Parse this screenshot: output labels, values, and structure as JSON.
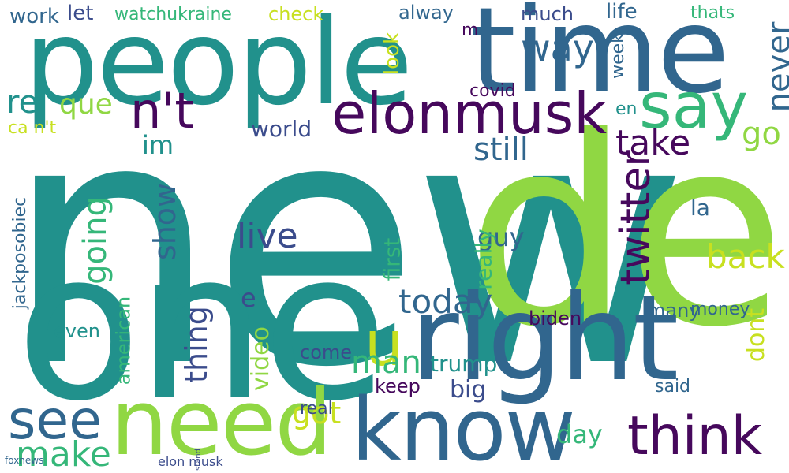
{
  "palette": {
    "dark_purple": "#46085c",
    "indigo": "#3b4c8c",
    "blue": "#31668e",
    "teal": "#21918c",
    "green": "#35b779",
    "lime": "#90d743",
    "yellow": "#c8e020"
  },
  "words": [
    {
      "t": "new",
      "c": "teal"
    },
    {
      "t": "de",
      "c": "lime"
    },
    {
      "t": "one",
      "c": "teal"
    },
    {
      "t": "people",
      "c": "teal"
    },
    {
      "t": "time",
      "c": "blue"
    },
    {
      "t": "right",
      "c": "blue"
    },
    {
      "t": "know",
      "c": "blue"
    },
    {
      "t": "need",
      "c": "lime"
    },
    {
      "t": "elonmusk",
      "c": "dark_purple"
    },
    {
      "t": "say",
      "c": "green"
    },
    {
      "t": "think",
      "c": "dark_purple"
    },
    {
      "t": "see",
      "c": "blue"
    },
    {
      "t": "n't",
      "c": "dark_purple"
    },
    {
      "t": "u",
      "c": "yellow"
    },
    {
      "t": "twitter",
      "c": "dark_purple"
    },
    {
      "t": "make",
      "c": "green"
    },
    {
      "t": "take",
      "c": "dark_purple"
    },
    {
      "t": "way",
      "c": "blue"
    },
    {
      "t": "back",
      "c": "yellow"
    },
    {
      "t": "go",
      "c": "lime"
    },
    {
      "t": "live",
      "c": "indigo"
    },
    {
      "t": "today",
      "c": "blue"
    },
    {
      "t": "still",
      "c": "blue"
    },
    {
      "t": "never",
      "c": "blue"
    },
    {
      "t": "re",
      "c": "teal"
    },
    {
      "t": "que",
      "c": "lime"
    },
    {
      "t": "going",
      "c": "green"
    },
    {
      "t": "show",
      "c": "blue"
    },
    {
      "t": "thing",
      "c": "indigo"
    },
    {
      "t": "got",
      "c": "yellow"
    },
    {
      "t": "man",
      "c": "green"
    },
    {
      "t": "dont",
      "c": "yellow"
    },
    {
      "t": "day",
      "c": "green"
    },
    {
      "t": "guy",
      "c": "blue"
    },
    {
      "t": "im",
      "c": "teal"
    },
    {
      "t": "world",
      "c": "indigo"
    },
    {
      "t": "trump",
      "c": "teal"
    },
    {
      "t": "video",
      "c": "lime"
    },
    {
      "t": "big",
      "c": "indigo"
    },
    {
      "t": "la",
      "c": "blue"
    },
    {
      "t": "e",
      "c": "indigo"
    },
    {
      "t": "first",
      "c": "green"
    },
    {
      "t": "really",
      "c": "green"
    },
    {
      "t": "work",
      "c": "blue"
    },
    {
      "t": "let",
      "c": "indigo"
    },
    {
      "t": "watchukraine",
      "c": "green"
    },
    {
      "t": "check",
      "c": "yellow"
    },
    {
      "t": "alway",
      "c": "blue"
    },
    {
      "t": "life",
      "c": "blue"
    },
    {
      "t": "thats",
      "c": "green"
    },
    {
      "t": "much",
      "c": "indigo"
    },
    {
      "t": "look",
      "c": "yellow"
    },
    {
      "t": "week",
      "c": "blue"
    },
    {
      "t": "m",
      "c": "dark_purple"
    },
    {
      "t": "jackposobiec",
      "c": "blue"
    },
    {
      "t": "american",
      "c": "green"
    },
    {
      "t": "even",
      "c": "teal"
    },
    {
      "t": "come",
      "c": "indigo"
    },
    {
      "t": "keep",
      "c": "dark_purple"
    },
    {
      "t": "biden",
      "c": "dark_purple"
    },
    {
      "t": "many",
      "c": "blue"
    },
    {
      "t": "money",
      "c": "blue"
    },
    {
      "t": "real",
      "c": "indigo"
    },
    {
      "t": "said",
      "c": "blue"
    },
    {
      "t": "covid",
      "c": "dark_purple"
    },
    {
      "t": "ca n't",
      "c": "yellow"
    },
    {
      "t": "en",
      "c": "teal"
    },
    {
      "t": "let",
      "c": "green"
    },
    {
      "t": "stand",
      "c": "indigo"
    },
    {
      "t": "elon musk",
      "c": "indigo"
    },
    {
      "t": "foxnews",
      "c": "blue"
    }
  ]
}
